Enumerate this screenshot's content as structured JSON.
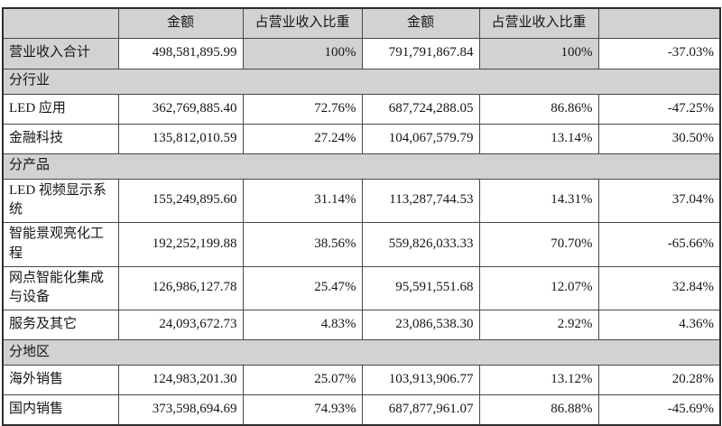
{
  "table": {
    "columns": [
      {
        "name": "header-cell-empty-left",
        "label": ""
      },
      {
        "name": "header-cell-amount-current",
        "label": "金额"
      },
      {
        "name": "header-cell-ratio-current",
        "label": "占营业收入比重"
      },
      {
        "name": "header-cell-amount-prior",
        "label": "金额"
      },
      {
        "name": "header-cell-ratio-prior",
        "label": "占营业收入比重"
      },
      {
        "name": "header-cell-empty-right",
        "label": ""
      }
    ],
    "rows": [
      {
        "type": "total",
        "label": "营业收入合计",
        "cells": [
          "498,581,895.99",
          "100%",
          "791,791,867.84",
          "100%",
          "-37.03%"
        ]
      },
      {
        "type": "section",
        "label": "分行业"
      },
      {
        "type": "data",
        "label": "LED 应用",
        "cells": [
          "362,769,885.40",
          "72.76%",
          "687,724,288.05",
          "86.86%",
          "-47.25%"
        ]
      },
      {
        "type": "data",
        "label": "金融科技",
        "cells": [
          "135,812,010.59",
          "27.24%",
          "104,067,579.79",
          "13.14%",
          "30.50%"
        ]
      },
      {
        "type": "section",
        "label": "分产品"
      },
      {
        "type": "data",
        "label": "LED 视频显示系统",
        "cells": [
          "155,249,895.60",
          "31.14%",
          "113,287,744.53",
          "14.31%",
          "37.04%"
        ]
      },
      {
        "type": "data",
        "label": "智能景观亮化工程",
        "cells": [
          "192,252,199.88",
          "38.56%",
          "559,826,033.33",
          "70.70%",
          "-65.66%"
        ]
      },
      {
        "type": "data",
        "label": "网点智能化集成与设备",
        "cells": [
          "126,986,127.78",
          "25.47%",
          "95,591,551.68",
          "12.07%",
          "32.84%"
        ]
      },
      {
        "type": "data",
        "label": "服务及其它",
        "cells": [
          "24,093,672.73",
          "4.83%",
          "23,086,538.30",
          "2.92%",
          "4.36%"
        ]
      },
      {
        "type": "section",
        "label": "分地区"
      },
      {
        "type": "data",
        "label": "海外销售",
        "cells": [
          "124,983,201.30",
          "25.07%",
          "103,913,906.77",
          "13.12%",
          "20.28%"
        ]
      },
      {
        "type": "data",
        "label": "国内销售",
        "cells": [
          "373,598,694.69",
          "74.93%",
          "687,877,961.07",
          "86.88%",
          "-45.69%"
        ]
      }
    ],
    "colors": {
      "shade_bg": "#d2d2d2",
      "border": "#474747",
      "text": "#151515"
    }
  }
}
